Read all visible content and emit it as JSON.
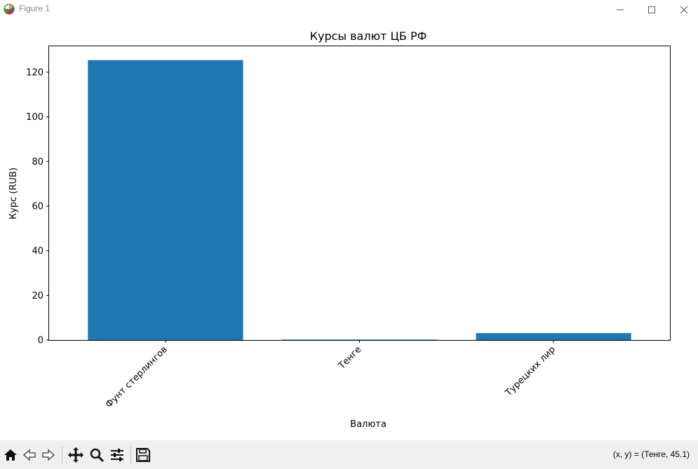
{
  "window": {
    "title": "Figure 1",
    "app_icon": "matplotlib-icon",
    "controls": [
      "minimize-icon",
      "maximize-icon",
      "close-icon"
    ]
  },
  "toolbar": {
    "buttons": [
      "home-icon",
      "back-icon",
      "forward-icon",
      "pan-icon",
      "zoom-icon",
      "configure-subplots-icon",
      "save-icon"
    ],
    "coords_text": "(x, y) = (Тенге, 45.1)"
  },
  "colors": {
    "bar": "#1f77b4",
    "toolbar_bg": "#f0f0f0"
  },
  "chart_data": {
    "type": "bar",
    "title": "Курсы валют ЦБ РФ",
    "xlabel": "Валюта",
    "ylabel": "Курс (RUB)",
    "categories": [
      "Фунт стерлингов",
      "Тенге",
      "Турецких лир"
    ],
    "values": [
      125.4,
      0.2,
      3.1
    ],
    "ylim": [
      0,
      131.6
    ],
    "yticks": [
      0,
      20,
      40,
      60,
      80,
      100,
      120
    ],
    "grid": false,
    "xtick_rotation": 45
  }
}
